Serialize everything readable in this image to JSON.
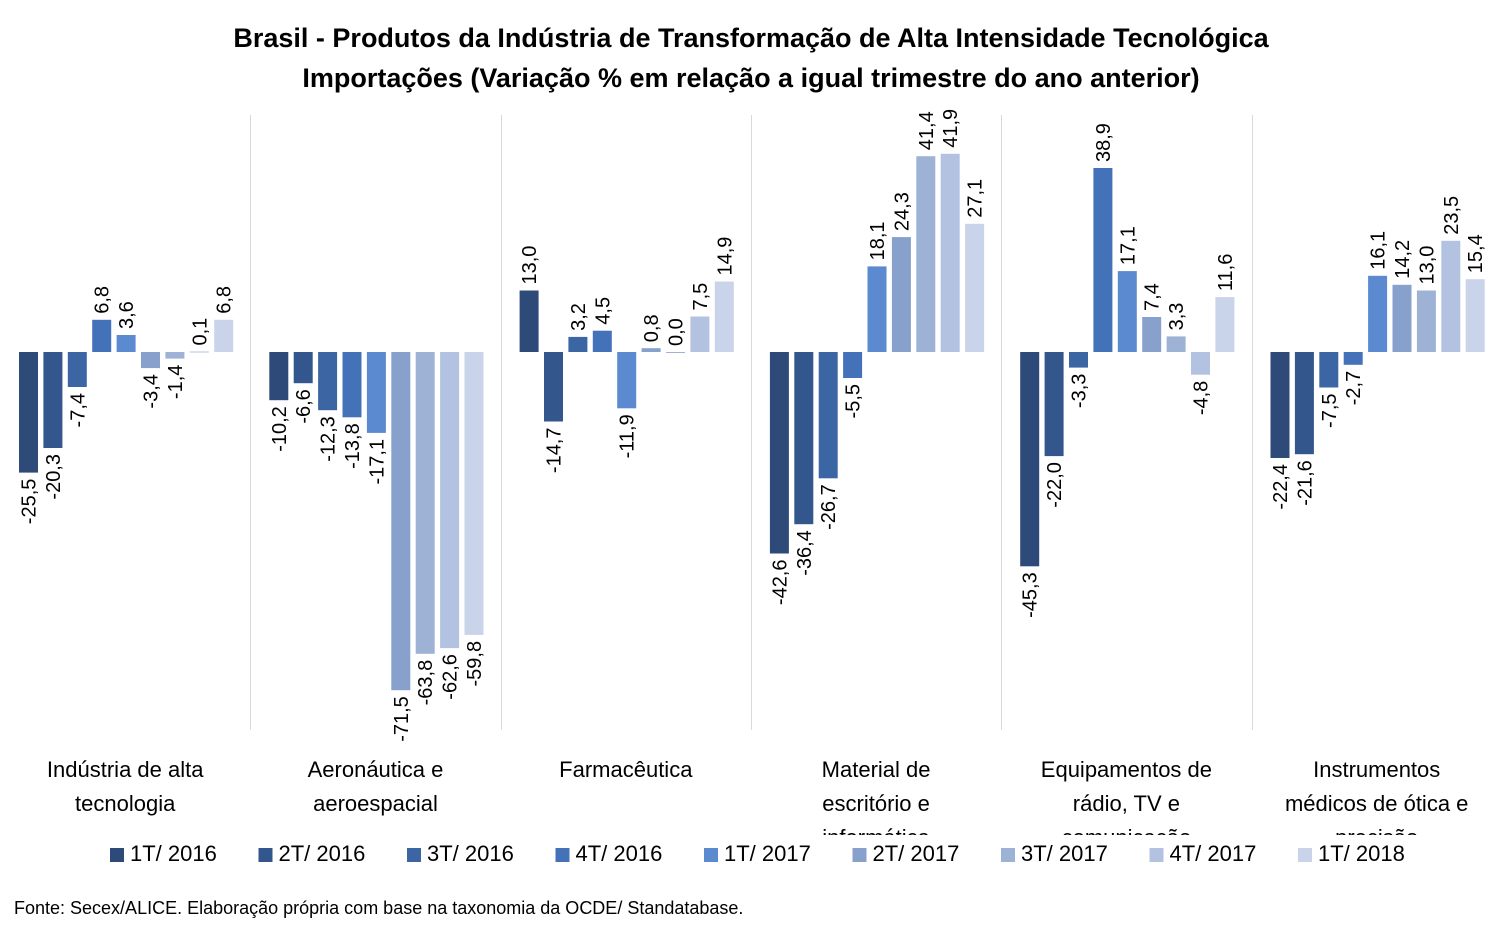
{
  "chart_data": {
    "type": "bar",
    "title": "Brasil - Produtos da Indústria de Transformação de Alta Intensidade Tecnológica",
    "subtitle": "Importações (Variação % em relação a igual trimestre do ano anterior)",
    "categories": [
      [
        "Indústria de alta",
        "tecnologia"
      ],
      [
        "Aeronáutica e",
        "aeroespacial"
      ],
      [
        "Farmacêutica"
      ],
      [
        "Material de",
        "escritório e",
        "informática"
      ],
      [
        "Equipamentos de",
        "rádio, TV e",
        "comunicação"
      ],
      [
        "Instrumentos",
        "médicos de ótica e",
        "precisão"
      ]
    ],
    "ylim": [
      -75,
      45
    ],
    "grid": false,
    "legend_position": "bottom",
    "series": [
      {
        "name": "1T/ 2016",
        "color": "#2e4a78",
        "values": [
          -25.5,
          -10.2,
          13.0,
          -42.6,
          -45.3,
          -22.4
        ],
        "labels": [
          "-25,5",
          "-10,2",
          "13,0",
          "-42,6",
          "-45,3",
          "-22,4"
        ]
      },
      {
        "name": "2T/ 2016",
        "color": "#33568c",
        "values": [
          -20.3,
          -6.6,
          -14.7,
          -36.4,
          -22.0,
          -21.6
        ],
        "labels": [
          "-20,3",
          "-6,6",
          "-14,7",
          "-36,4",
          "-22,0",
          "-21,6"
        ]
      },
      {
        "name": "3T/ 2016",
        "color": "#3c66a3",
        "values": [
          -7.4,
          -12.3,
          3.2,
          -26.7,
          -3.3,
          -7.5
        ],
        "labels": [
          "-7,4",
          "-12,3",
          "3,2",
          "-26,7",
          "-3,3",
          "-7,5"
        ]
      },
      {
        "name": "4T/ 2016",
        "color": "#4472b8",
        "values": [
          6.8,
          -13.8,
          4.5,
          -5.5,
          38.9,
          -2.7
        ],
        "labels": [
          "6,8",
          "-13,8",
          "4,5",
          "-5,5",
          "38,9",
          "-2,7"
        ]
      },
      {
        "name": "1T/ 2017",
        "color": "#5b8ad0",
        "values": [
          3.6,
          -17.1,
          -11.9,
          18.1,
          17.1,
          16.1
        ],
        "labels": [
          "3,6",
          "-17,1",
          "-11,9",
          "18,1",
          "17,1",
          "16,1"
        ]
      },
      {
        "name": "2T/ 2017",
        "color": "#87a1cc",
        "values": [
          -3.4,
          -71.5,
          0.8,
          24.3,
          7.4,
          14.2
        ],
        "labels": [
          "-3,4",
          "-71,5",
          "0,8",
          "24,3",
          "7,4",
          "14,2"
        ]
      },
      {
        "name": "3T/ 2017",
        "color": "#9eb2d6",
        "values": [
          -1.4,
          -63.8,
          0.0,
          41.4,
          3.3,
          13.0
        ],
        "labels": [
          "-1,4",
          "-63,8",
          "0,0",
          "41,4",
          "3,3",
          "13,0"
        ]
      },
      {
        "name": "4T/ 2017",
        "color": "#b3c2e0",
        "values": [
          0.1,
          -62.6,
          7.5,
          41.9,
          -4.8,
          23.5
        ],
        "labels": [
          "0,1",
          "-62,6",
          "7,5",
          "41,9",
          "-4,8",
          "23,5"
        ]
      },
      {
        "name": "1T/ 2018",
        "color": "#c9d3e9",
        "values": [
          6.8,
          -59.8,
          14.9,
          27.1,
          11.6,
          15.4
        ],
        "labels": [
          "6,8",
          "-59,8",
          "14,9",
          "27,1",
          "11,6",
          "15,4"
        ]
      }
    ]
  },
  "footer": {
    "source": "Fonte: Secex/ALICE. Elaboração própria com base na taxonomia da OCDE/ Standatabase."
  }
}
